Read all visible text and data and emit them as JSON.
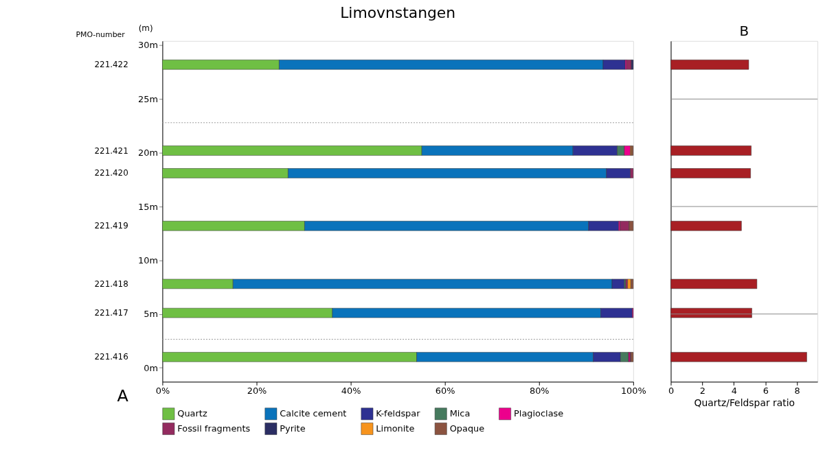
{
  "chart_data": [
    {
      "type": "bar",
      "orientation": "horizontal",
      "stacked": true,
      "title": "Limovnstangen",
      "ylabel": "(m)",
      "x": [
        28.2,
        20.2,
        18.1,
        13.2,
        7.8,
        5.1,
        1.0
      ],
      "series": [
        {
          "name": "Quartz",
          "color": "#6fbf44",
          "values": [
            24.8,
            55.1,
            26.7,
            30.2,
            15.0,
            36.1,
            54.0
          ]
        },
        {
          "name": "Calcite cement",
          "color": "#0a73bb",
          "values": [
            68.8,
            32.1,
            67.6,
            60.3,
            80.5,
            57.0,
            37.5
          ]
        },
        {
          "name": "K-feldspar",
          "color": "#2e3192",
          "values": [
            4.7,
            9.4,
            5.1,
            6.4,
            2.6,
            6.7,
            5.8
          ]
        },
        {
          "name": "Mica",
          "color": "#467a5e",
          "values": [
            null,
            1.5,
            null,
            null,
            0.3,
            null,
            1.7
          ]
        },
        {
          "name": "Plagioclase",
          "color": "#ec008c",
          "values": [
            0.3,
            1.3,
            null,
            0.3,
            null,
            0.2,
            0.3
          ]
        },
        {
          "name": "Fossil fragments",
          "color": "#932b5f",
          "values": [
            1.0,
            null,
            0.6,
            1.9,
            0.4,
            null,
            0.2
          ]
        },
        {
          "name": "Pyrite",
          "color": "#2b2e63",
          "values": [
            0.4,
            null,
            null,
            null,
            null,
            null,
            null
          ]
        },
        {
          "name": "Limonite",
          "color": "#f7941d",
          "values": [
            null,
            0.2,
            null,
            null,
            0.7,
            null,
            null
          ]
        },
        {
          "name": "Opaque",
          "color": "#8b5340",
          "values": [
            null,
            0.4,
            null,
            0.9,
            0.5,
            null,
            0.5
          ]
        }
      ],
      "xlim": [
        0,
        100
      ],
      "xticks": [
        {
          "value": 0,
          "label": "0%"
        },
        {
          "value": 20,
          "label": "20%"
        },
        {
          "value": 40,
          "label": "40%"
        },
        {
          "value": 60,
          "label": "60%"
        },
        {
          "value": 80,
          "label": "80%"
        },
        {
          "value": 100,
          "label": "100%"
        }
      ],
      "ylim": [
        -1.3,
        30.4
      ],
      "yticks": [
        {
          "value": 0,
          "label": "0m"
        },
        {
          "value": 5,
          "label": "5m"
        },
        {
          "value": 10,
          "label": "10m"
        },
        {
          "value": 15,
          "label": "15m"
        },
        {
          "value": 20,
          "label": "20m"
        },
        {
          "value": 25,
          "label": "25m"
        },
        {
          "value": 30,
          "label": "30m"
        }
      ],
      "ref_lines": [
        {
          "axis": "y",
          "value": 22.8,
          "line_style": "dotted",
          "color": "#999999"
        },
        {
          "axis": "y",
          "value": 2.65,
          "line_style": "dotted",
          "color": "#999999"
        }
      ],
      "annotations": [
        "PMO-number",
        "A",
        "221.422",
        "221.421",
        "221.420",
        "221.419",
        "221.418",
        "221.417",
        "221.416"
      ],
      "legend": "bottom",
      "grid": false
    },
    {
      "type": "bar",
      "orientation": "horizontal",
      "title": "B",
      "xlabel": "Quartz/Feldspar ratio",
      "x": [
        28.2,
        20.2,
        18.1,
        13.2,
        7.8,
        5.1,
        1.0
      ],
      "series": [
        {
          "color": "#a81f24",
          "values": [
            4.94,
            5.1,
            5.06,
            4.48,
            5.46,
            5.14,
            8.62
          ]
        }
      ],
      "xlim": [
        0,
        9.3
      ],
      "xticks": [
        0,
        2,
        4,
        6,
        8
      ],
      "ylim": [
        -1.3,
        30.4
      ],
      "tick_labels": "x",
      "ref_lines": [
        {
          "axis": "y",
          "value": 25,
          "color": "#888888"
        },
        {
          "axis": "y",
          "value": 15,
          "color": "#888888"
        },
        {
          "axis": "y",
          "value": 5,
          "color": "#888888"
        }
      ],
      "legend": false,
      "grid": false
    }
  ]
}
